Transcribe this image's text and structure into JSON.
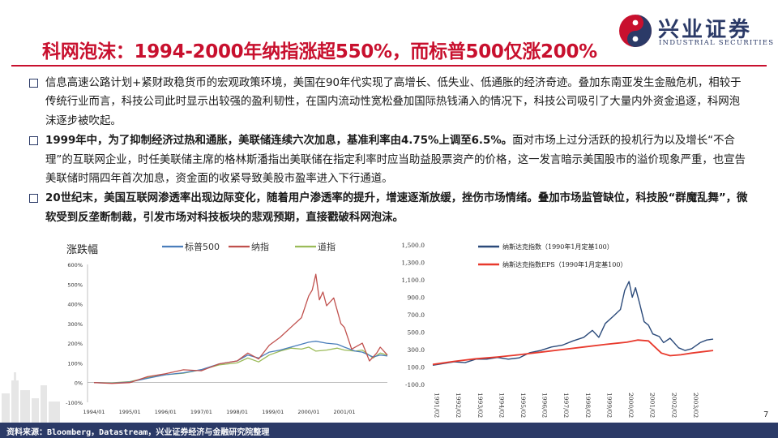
{
  "slide": {
    "title": "科网泡沫：1994-2000年纳指涨超550%，而标普500仅涨200%",
    "page_number": "7",
    "source": "资料来源：Bloomberg，Datastream，兴业证券经济与金融研究院整理"
  },
  "logo": {
    "name_cn": "兴业证券",
    "name_en": "INDUSTRIAL SECURITIES"
  },
  "bullets": [
    {
      "strong": "",
      "text": "信息高速公路计划+紧财政稳货币的宏观政策环境，美国在90年代实现了高增长、低失业、低通胀的经济奇迹。叠加东南亚发生金融危机，相较于传统行业而言，科技公司此时显示出较强的盈利韧性，在国内流动性宽松叠加国际热钱涌入的情况下，科技公司吸引了大量内外资金追逐，科网泡沫逐步被吹起。"
    },
    {
      "strong": "1999年中，为了抑制经济过热和通胀，美联储连续六次加息，基准利率由4.75%上调至6.5%。",
      "text": "面对市场上过分活跃的投机行为以及增长“不合理”的互联网企业，时任美联储主席的格林斯潘指出美联储在指定利率时应当助益股票资产的价格，这一发言暗示美国股市的溢价现象严重，也宣告美联储时隔四年首次加息，资金面的收紧导致美股市盈率进入下行通道。"
    },
    {
      "strong": "20世纪末，美国互联网渗透率出现边际变化，随着用户渗透率的提升，增速逐渐放缓，挫伤市场情绪。叠加市场监管缺位，科技股“群魔乱舞”，微软受到反垄断制裁，引发市场对科技板块的悲观预期，直接戳破科网泡沫。",
      "text": ""
    }
  ],
  "colors": {
    "brand_red": "#c8102e",
    "brand_navy": "#2b3a67",
    "sp500": "#4a7ebb",
    "nasdaq": "#c0504d",
    "dow": "#9bbb59",
    "nasdaq_index": "#2b4a7a",
    "nasdaq_eps": "#e8392c"
  },
  "chart_data": [
    {
      "type": "line",
      "title": "涨跌幅",
      "xlabel": "",
      "ylabel": "",
      "x_ticks": [
        "1994/01",
        "1995/01",
        "1996/01",
        "1997/01",
        "1998/01",
        "1999/01",
        "2000/01",
        "2001/01"
      ],
      "y_ticks": [
        "600%",
        "500%",
        "400%",
        "300%",
        "200%",
        "100%",
        "0%",
        "-100%"
      ],
      "ylim": [
        -100,
        600
      ],
      "xlim": [
        1994.0,
        2002.2
      ],
      "legend_position": "top",
      "series": [
        {
          "name": "标普500",
          "x": [
            1994.0,
            1994.5,
            1995.0,
            1995.5,
            1996.0,
            1996.5,
            1997.0,
            1997.5,
            1998.0,
            1998.3,
            1998.6,
            1998.9,
            1999.2,
            1999.5,
            1999.8,
            2000.0,
            2000.2,
            2000.5,
            2000.8,
            2001.0,
            2001.3,
            2001.5,
            2001.8,
            2002.0,
            2002.2
          ],
          "values": [
            0,
            -3,
            3,
            22,
            40,
            50,
            66,
            95,
            110,
            140,
            125,
            155,
            165,
            180,
            195,
            205,
            210,
            200,
            195,
            180,
            160,
            155,
            130,
            140,
            135
          ]
        },
        {
          "name": "纳指",
          "x": [
            1994.0,
            1994.5,
            1995.0,
            1995.5,
            1996.0,
            1996.5,
            1997.0,
            1997.5,
            1998.0,
            1998.3,
            1998.6,
            1998.9,
            1999.2,
            1999.5,
            1999.8,
            2000.0,
            2000.1,
            2000.2,
            2000.3,
            2000.4,
            2000.5,
            2000.7,
            2000.9,
            2001.0,
            2001.2,
            2001.5,
            2001.7,
            2001.9,
            2002.0,
            2002.2
          ],
          "values": [
            0,
            -4,
            0,
            30,
            45,
            65,
            60,
            95,
            110,
            150,
            120,
            190,
            230,
            280,
            330,
            440,
            470,
            550,
            420,
            460,
            390,
            430,
            300,
            280,
            170,
            200,
            110,
            150,
            180,
            140
          ]
        },
        {
          "name": "道指",
          "x": [
            1994.0,
            1994.5,
            1995.0,
            1995.5,
            1996.0,
            1996.5,
            1997.0,
            1997.5,
            1998.0,
            1998.3,
            1998.6,
            1998.9,
            1999.2,
            1999.5,
            1999.8,
            2000.0,
            2000.2,
            2000.5,
            2000.8,
            2001.0,
            2001.3,
            2001.5,
            2001.8,
            2002.0,
            2002.2
          ],
          "values": [
            0,
            -1,
            5,
            25,
            40,
            48,
            65,
            90,
            100,
            125,
            105,
            140,
            160,
            175,
            170,
            180,
            160,
            165,
            175,
            165,
            160,
            165,
            125,
            150,
            140
          ]
        }
      ]
    },
    {
      "type": "line",
      "title": "",
      "xlabel": "",
      "ylabel": "",
      "x_ticks": [
        "1991/02",
        "1992/02",
        "1993/02",
        "1994/02",
        "1995/02",
        "1996/02",
        "1997/02",
        "1998/02",
        "1999/02",
        "2000/02",
        "2001/02",
        "2002/02",
        "2003/02"
      ],
      "y_ticks": [
        "1,500.0",
        "1,300.0",
        "1,100.0",
        "900.0",
        "700.0",
        "500.0",
        "300.0",
        "100.0",
        "-100.0"
      ],
      "ylim": [
        -100,
        1500
      ],
      "xlim": [
        1991.1,
        2004.1
      ],
      "legend_position": "top",
      "series": [
        {
          "name": "纳斯达克指数（1990年1月定基100）",
          "x": [
            1991.1,
            1991.6,
            1992.1,
            1992.6,
            1993.1,
            1993.6,
            1994.1,
            1994.6,
            1995.1,
            1995.6,
            1996.1,
            1996.6,
            1997.1,
            1997.6,
            1998.1,
            1998.5,
            1998.8,
            1999.1,
            1999.5,
            1999.8,
            2000.0,
            2000.2,
            2000.35,
            2000.5,
            2000.7,
            2000.9,
            2001.1,
            2001.3,
            2001.6,
            2001.8,
            2002.1,
            2002.5,
            2002.8,
            2003.1,
            2003.5,
            2003.8,
            2004.1
          ],
          "values": [
            120,
            140,
            160,
            150,
            190,
            190,
            210,
            190,
            205,
            265,
            290,
            330,
            350,
            400,
            440,
            520,
            440,
            600,
            690,
            760,
            980,
            1080,
            900,
            1010,
            820,
            620,
            580,
            480,
            450,
            380,
            430,
            320,
            290,
            310,
            380,
            410,
            420
          ]
        },
        {
          "name": "纳斯达克指数EPS（1990年1月定基100）",
          "x": [
            1991.1,
            1992.1,
            1993.1,
            1994.1,
            1995.1,
            1996.1,
            1997.1,
            1998.1,
            1999.1,
            2000.1,
            2000.6,
            2001.1,
            2001.4,
            2001.7,
            2002.1,
            2002.6,
            2003.1,
            2003.6,
            2004.1
          ],
          "values": [
            130,
            165,
            195,
            215,
            240,
            270,
            300,
            330,
            360,
            385,
            410,
            400,
            330,
            260,
            230,
            240,
            260,
            275,
            290
          ]
        }
      ]
    }
  ]
}
